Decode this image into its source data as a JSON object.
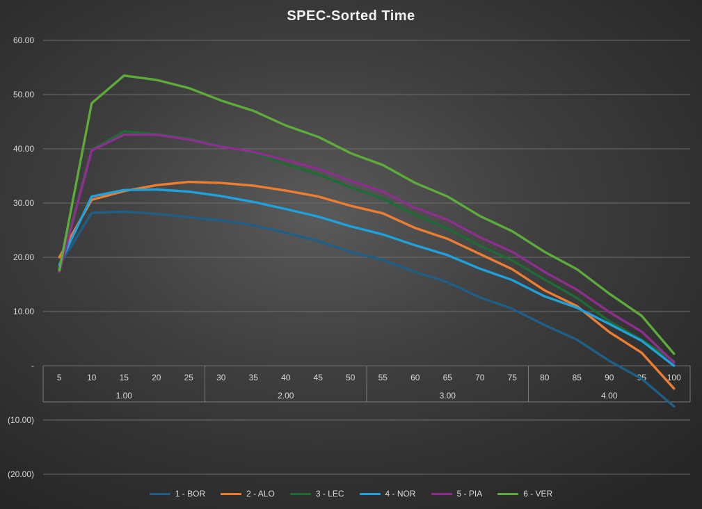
{
  "chart_data": {
    "type": "line",
    "title": "SPEC-Sorted Time",
    "xlabel": "",
    "ylabel": "",
    "x": [
      "5",
      "10",
      "15",
      "20",
      "25",
      "30",
      "35",
      "40",
      "45",
      "50",
      "55",
      "60",
      "65",
      "70",
      "75",
      "80",
      "85",
      "90",
      "95",
      "100"
    ],
    "x_groups": [
      {
        "label": "1.00",
        "from": 0,
        "to": 4
      },
      {
        "label": "2.00",
        "from": 5,
        "to": 9
      },
      {
        "label": "3.00",
        "from": 10,
        "to": 14
      },
      {
        "label": "4.00",
        "from": 15,
        "to": 19
      }
    ],
    "ylim": [
      -20,
      60
    ],
    "y_ticks": [
      {
        "value": 60,
        "label": "60.00"
      },
      {
        "value": 50,
        "label": "50.00"
      },
      {
        "value": 40,
        "label": "40.00"
      },
      {
        "value": 30,
        "label": "30.00"
      },
      {
        "value": 20,
        "label": "20.00"
      },
      {
        "value": 10,
        "label": "10.00"
      },
      {
        "value": 0,
        "label": "-"
      },
      {
        "value": -10,
        "label": "(10.00)"
      },
      {
        "value": -20,
        "label": "(20.00)"
      }
    ],
    "grid": true,
    "legend_position": "bottom",
    "series": [
      {
        "name": "1 - BOR",
        "color": "#1f5f86",
        "values": [
          18.5,
          28.2,
          28.4,
          28.0,
          27.4,
          26.8,
          25.9,
          24.5,
          23.0,
          21.0,
          19.5,
          17.3,
          15.4,
          12.6,
          10.5,
          7.5,
          4.8,
          0.9,
          -2.4,
          -7.5
        ]
      },
      {
        "name": "2 - ALO",
        "color": "#ed7d31",
        "values": [
          20.0,
          30.6,
          32.2,
          33.3,
          33.9,
          33.7,
          33.2,
          32.3,
          31.2,
          29.5,
          28.1,
          25.4,
          23.4,
          20.6,
          17.8,
          13.9,
          11.0,
          6.2,
          2.4,
          -4.2
        ]
      },
      {
        "name": "3 - LEC",
        "color": "#1e6b34",
        "values": [
          18.0,
          39.8,
          43.2,
          42.7,
          41.9,
          40.5,
          39.2,
          37.2,
          35.3,
          32.9,
          30.8,
          27.8,
          25.3,
          22.1,
          19.4,
          15.9,
          12.5,
          8.2,
          4.8,
          0.8
        ]
      },
      {
        "name": "4 - NOR",
        "color": "#1fa1dc",
        "values": [
          18.6,
          31.2,
          32.4,
          32.5,
          32.1,
          31.3,
          30.2,
          28.9,
          27.5,
          25.7,
          24.2,
          22.2,
          20.4,
          17.9,
          15.8,
          12.8,
          10.7,
          7.7,
          4.6,
          0.0
        ]
      },
      {
        "name": "5 - PIA",
        "color": "#8e2e8e",
        "values": [
          17.3,
          39.7,
          42.6,
          42.6,
          41.7,
          40.4,
          39.4,
          37.9,
          36.3,
          34.1,
          32.1,
          29.1,
          26.9,
          23.7,
          21.0,
          17.3,
          14.0,
          9.9,
          6.3,
          0.6
        ]
      },
      {
        "name": "6 - VER",
        "color": "#5dab3a",
        "values": [
          17.6,
          48.4,
          53.5,
          52.7,
          51.2,
          48.9,
          47.0,
          44.3,
          42.2,
          39.2,
          37.0,
          33.7,
          31.2,
          27.6,
          24.8,
          21.0,
          17.8,
          13.3,
          9.2,
          2.2
        ]
      }
    ]
  }
}
